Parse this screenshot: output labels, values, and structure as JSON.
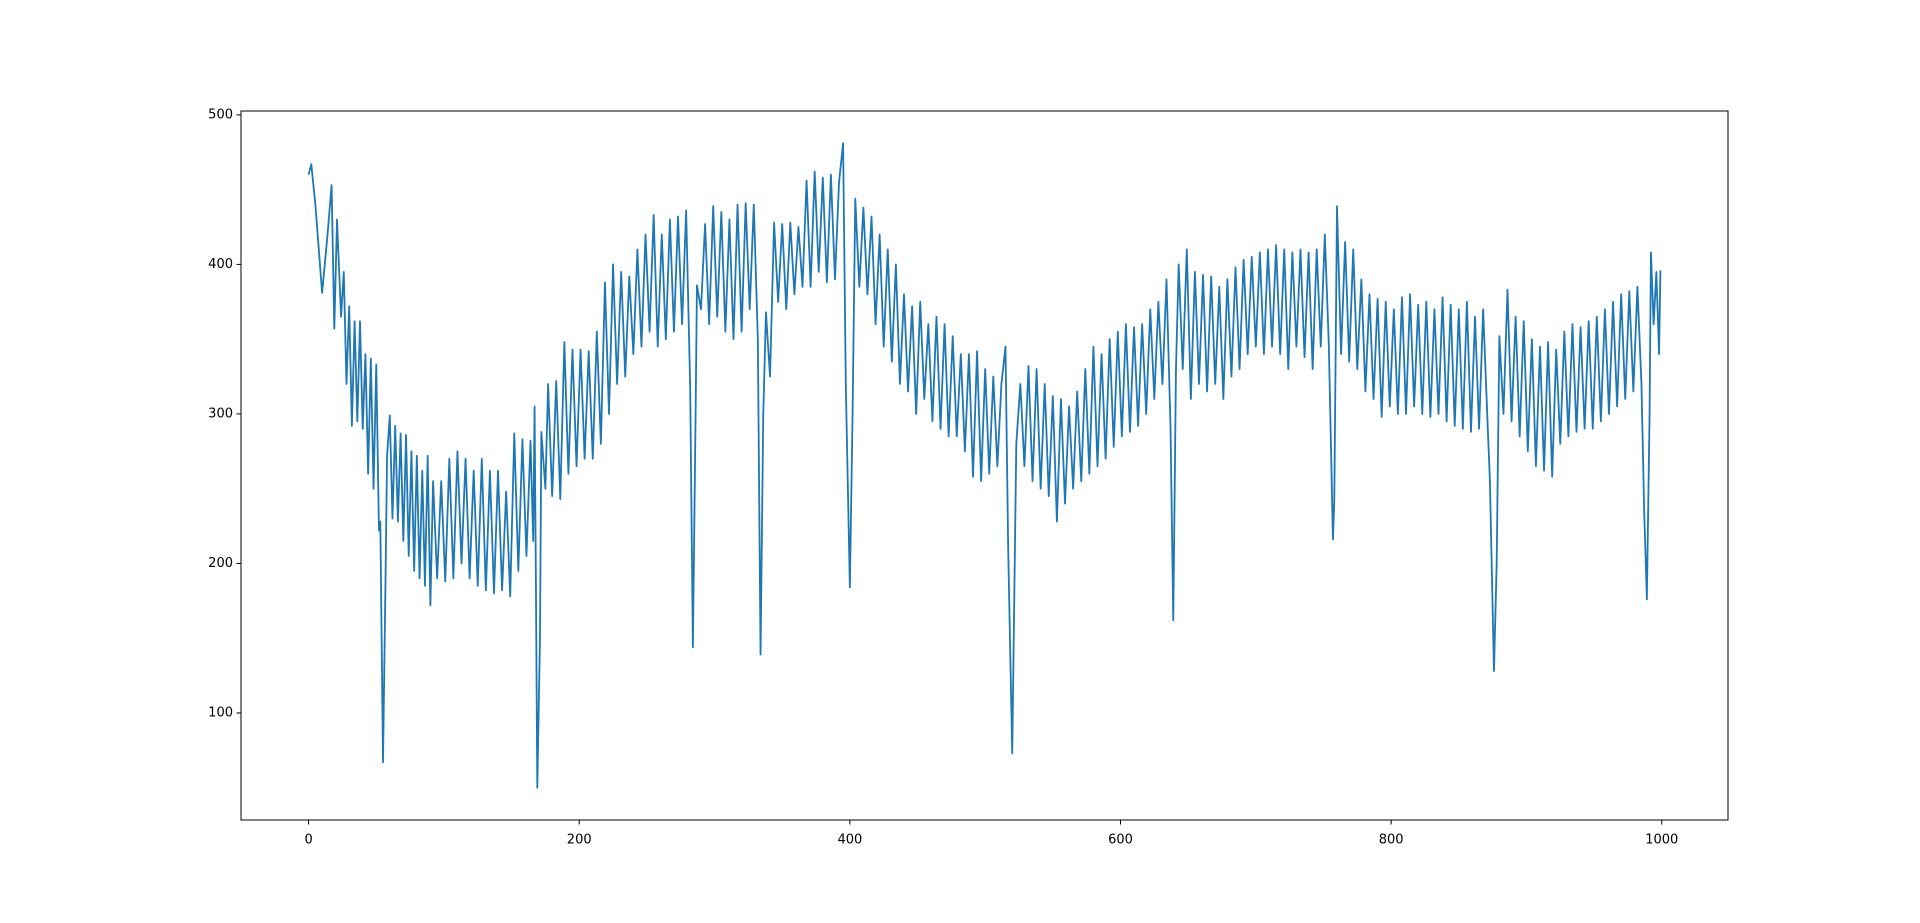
{
  "chart_data": {
    "type": "line",
    "xlim": [
      -49.95,
      1048.95
    ],
    "ylim": [
      28.4,
      502.6
    ],
    "xticks": [
      0,
      200,
      400,
      600,
      800,
      1000
    ],
    "yticks": [
      100,
      200,
      300,
      400,
      500
    ],
    "grid": false,
    "series": [
      {
        "color": "#1f77b4",
        "x": [
          0,
          2,
          5,
          10,
          14,
          17,
          19,
          21,
          24,
          26,
          28,
          30,
          32,
          34,
          36,
          38,
          40,
          42,
          44,
          46,
          48,
          50,
          52,
          53,
          55,
          57,
          58,
          60,
          62,
          64,
          66,
          68,
          70,
          72,
          74,
          76,
          78,
          80,
          82,
          84,
          86,
          88,
          90,
          92,
          95,
          98,
          101,
          104,
          107,
          110,
          113,
          116,
          119,
          122,
          125,
          128,
          131,
          134,
          137,
          140,
          143,
          146,
          149,
          152,
          155,
          158,
          161,
          164,
          166,
          167,
          168,
          169,
          171,
          172,
          175,
          177,
          180,
          183,
          186,
          189,
          192,
          195,
          198,
          201,
          204,
          207,
          210,
          213,
          216,
          219,
          222,
          225,
          228,
          231,
          234,
          237,
          240,
          243,
          246,
          249,
          252,
          255,
          258,
          261,
          264,
          267,
          270,
          273,
          276,
          279,
          282,
          284,
          286,
          287,
          290,
          293,
          296,
          299,
          302,
          305,
          308,
          311,
          314,
          317,
          320,
          323,
          326,
          329,
          332,
          334,
          336,
          338,
          341,
          344,
          347,
          350,
          353,
          356,
          359,
          362,
          365,
          368,
          371,
          374,
          377,
          380,
          383,
          386,
          389,
          392,
          395,
          397,
          400,
          402,
          404,
          407,
          410,
          413,
          416,
          419,
          422,
          425,
          428,
          431,
          434,
          437,
          440,
          443,
          446,
          449,
          452,
          455,
          458,
          461,
          464,
          467,
          470,
          473,
          476,
          479,
          482,
          485,
          488,
          491,
          494,
          497,
          500,
          503,
          506,
          509,
          512,
          515,
          517,
          520,
          523,
          526,
          529,
          532,
          535,
          538,
          541,
          544,
          547,
          550,
          553,
          556,
          559,
          562,
          565,
          568,
          571,
          574,
          577,
          580,
          583,
          586,
          589,
          592,
          595,
          598,
          601,
          604,
          607,
          610,
          613,
          616,
          619,
          622,
          625,
          628,
          631,
          634,
          637,
          639,
          641,
          643,
          646,
          649,
          652,
          655,
          658,
          661,
          664,
          667,
          670,
          673,
          676,
          679,
          682,
          685,
          688,
          691,
          694,
          697,
          700,
          703,
          706,
          709,
          712,
          715,
          718,
          721,
          724,
          727,
          730,
          733,
          736,
          739,
          742,
          745,
          748,
          751,
          754,
          757,
          758,
          760,
          763,
          766,
          769,
          772,
          775,
          778,
          781,
          784,
          787,
          790,
          793,
          796,
          799,
          802,
          805,
          808,
          811,
          814,
          817,
          820,
          823,
          826,
          829,
          832,
          835,
          838,
          841,
          844,
          847,
          850,
          853,
          856,
          859,
          862,
          865,
          868,
          871,
          873,
          876,
          878,
          880,
          883,
          886,
          889,
          892,
          895,
          898,
          901,
          904,
          907,
          910,
          913,
          916,
          919,
          922,
          925,
          928,
          931,
          934,
          937,
          940,
          943,
          946,
          949,
          952,
          955,
          958,
          961,
          964,
          967,
          970,
          973,
          976,
          979,
          982,
          985,
          987,
          989,
          991,
          992,
          994,
          996,
          998,
          999
        ],
        "values": [
          460,
          467,
          440,
          381,
          420,
          453,
          357,
          430,
          365,
          395,
          320,
          372,
          292,
          362,
          295,
          362,
          290,
          340,
          260,
          337,
          250,
          333,
          222,
          228,
          67,
          200,
          272,
          299,
          230,
          292,
          228,
          287,
          215,
          286,
          205,
          275,
          195,
          272,
          190,
          262,
          185,
          272,
          172,
          255,
          190,
          255,
          188,
          270,
          190,
          275,
          200,
          270,
          190,
          262,
          185,
          270,
          182,
          262,
          180,
          262,
          182,
          248,
          178,
          287,
          195,
          283,
          205,
          282,
          215,
          305,
          186,
          50,
          150,
          288,
          250,
          320,
          245,
          322,
          243,
          348,
          260,
          343,
          265,
          343,
          270,
          342,
          270,
          355,
          280,
          388,
          300,
          400,
          320,
          395,
          325,
          392,
          340,
          410,
          345,
          420,
          355,
          433,
          345,
          420,
          350,
          430,
          355,
          432,
          360,
          436,
          318,
          144,
          300,
          386,
          370,
          427,
          360,
          439,
          365,
          435,
          355,
          430,
          350,
          440,
          355,
          441,
          370,
          440,
          350,
          139,
          300,
          368,
          325,
          428,
          375,
          427,
          370,
          428,
          380,
          425,
          385,
          456,
          385,
          462,
          395,
          458,
          388,
          460,
          390,
          455,
          481,
          320,
          184,
          300,
          444,
          385,
          438,
          380,
          432,
          360,
          420,
          345,
          410,
          335,
          400,
          320,
          380,
          315,
          372,
          300,
          375,
          310,
          360,
          295,
          365,
          290,
          360,
          285,
          352,
          285,
          340,
          275,
          340,
          258,
          342,
          255,
          330,
          260,
          325,
          265,
          320,
          345,
          210,
          73,
          280,
          320,
          265,
          332,
          255,
          330,
          250,
          320,
          245,
          312,
          228,
          310,
          240,
          305,
          250,
          315,
          255,
          330,
          260,
          345,
          265,
          340,
          270,
          350,
          278,
          355,
          285,
          360,
          288,
          358,
          292,
          360,
          300,
          370,
          310,
          375,
          320,
          390,
          290,
          162,
          330,
          400,
          330,
          410,
          310,
          395,
          320,
          393,
          315,
          392,
          320,
          385,
          310,
          390,
          325,
          398,
          330,
          403,
          340,
          405,
          345,
          408,
          340,
          410,
          345,
          413,
          340,
          410,
          330,
          408,
          345,
          410,
          338,
          408,
          330,
          410,
          345,
          420,
          345,
          216,
          242,
          439,
          340,
          415,
          335,
          410,
          330,
          390,
          315,
          380,
          310,
          377,
          298,
          375,
          305,
          370,
          300,
          378,
          300,
          380,
          305,
          373,
          300,
          375,
          298,
          370,
          300,
          378,
          295,
          373,
          292,
          370,
          290,
          375,
          288,
          365,
          290,
          370,
          300,
          255,
          128,
          200,
          352,
          300,
          383,
          295,
          365,
          285,
          362,
          275,
          350,
          265,
          345,
          262,
          348,
          258,
          343,
          280,
          355,
          285,
          360,
          288,
          358,
          290,
          362,
          290,
          365,
          295,
          370,
          300,
          375,
          305,
          380,
          310,
          382,
          315,
          385,
          320,
          235,
          176,
          300,
          408,
          360,
          395,
          340,
          396
        ]
      }
    ]
  }
}
